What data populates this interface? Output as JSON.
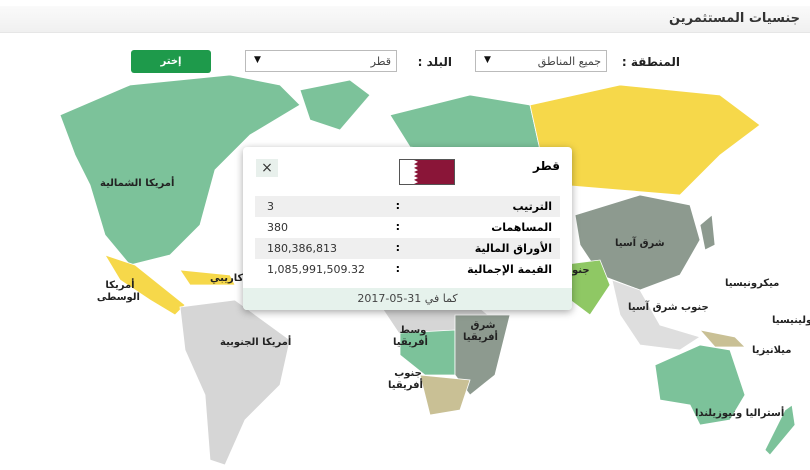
{
  "header": {
    "title": "جنسيات المستثمرين"
  },
  "filters": {
    "region_label": "المنطقة :",
    "region_value": "جميع المناطق",
    "country_label": "البلد :",
    "country_value": "قطر",
    "submit_label": "إختر",
    "dropdown_icon": "triangle-down"
  },
  "colors": {
    "green": "#7cc29a",
    "yellow": "#f6d84a",
    "gray": "#d6d6d6",
    "dark": "#8d9a8f",
    "olive": "#c9c095",
    "button": "#1e9a4b"
  },
  "map_labels": {
    "north_america": "أمريكا الشمالية",
    "central_america": "أمريكا الوسطى",
    "caribbean": "كاريبي",
    "south_america": "أمريكا الجنوبية",
    "central_africa": "وسط أفريقيا",
    "east_africa": "شرق أفريقيا",
    "south_africa": "جنوب أفريقيا",
    "east_asia": "شرق آسيا",
    "south_asia": "جنو",
    "southeast_asia": "جنوب شرق آسيا",
    "micronesia": "ميكرونيسيا",
    "polynesia": "بولينيسيا",
    "melanesia": "ميلانيزيا",
    "australia": "أستراليا ونيوزيلندا"
  },
  "popup": {
    "country": "قطر",
    "flag": "qatar-flag",
    "close_icon": "×",
    "rows": [
      {
        "label": "الترتيب",
        "value": "3"
      },
      {
        "label": "المساهمات",
        "value": "380"
      },
      {
        "label": "الأوراق المالية",
        "value": "180,386,813"
      },
      {
        "label": "القيمة الإجمالية",
        "value": "1,085,991,509.32"
      }
    ],
    "colon": ":",
    "footer": "كما في 31-05-2017"
  }
}
